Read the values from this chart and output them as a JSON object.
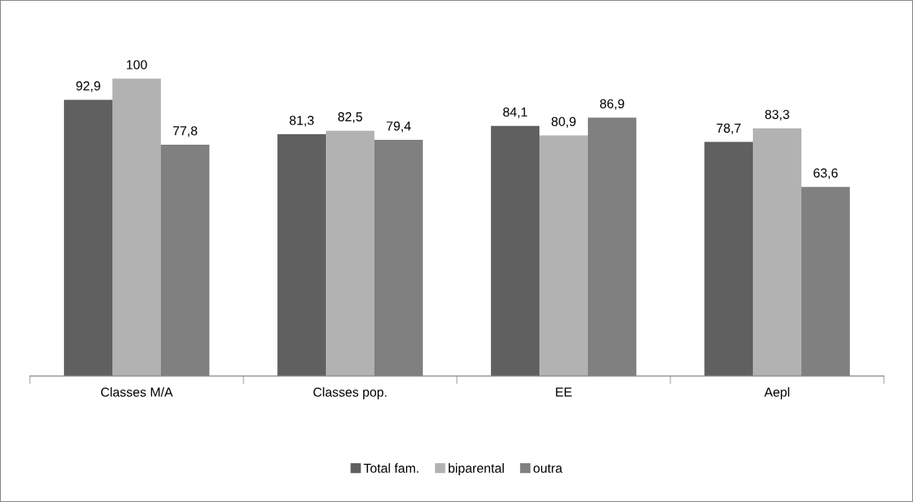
{
  "chart_data": {
    "type": "bar",
    "categories": [
      "Classes M/A",
      "Classes pop.",
      "EE",
      "Aepl"
    ],
    "series": [
      {
        "name": "Total fam.",
        "color": "#606060",
        "values": [
          92.9,
          81.3,
          84.1,
          78.7
        ],
        "value_labels": [
          "92,9",
          "81,3",
          "84,1",
          "78,7"
        ]
      },
      {
        "name": "biparental",
        "color": "#b2b2b2",
        "values": [
          100,
          82.5,
          80.9,
          83.3
        ],
        "value_labels": [
          "100",
          "82,5",
          "80,9",
          "83,3"
        ]
      },
      {
        "name": "outra",
        "color": "#808080",
        "values": [
          77.8,
          79.4,
          86.9,
          63.6
        ],
        "value_labels": [
          "77,8",
          "79,4",
          "86,9",
          "63,6"
        ]
      }
    ],
    "grid": false,
    "legend": "bottom",
    "tick_labels": "x"
  }
}
